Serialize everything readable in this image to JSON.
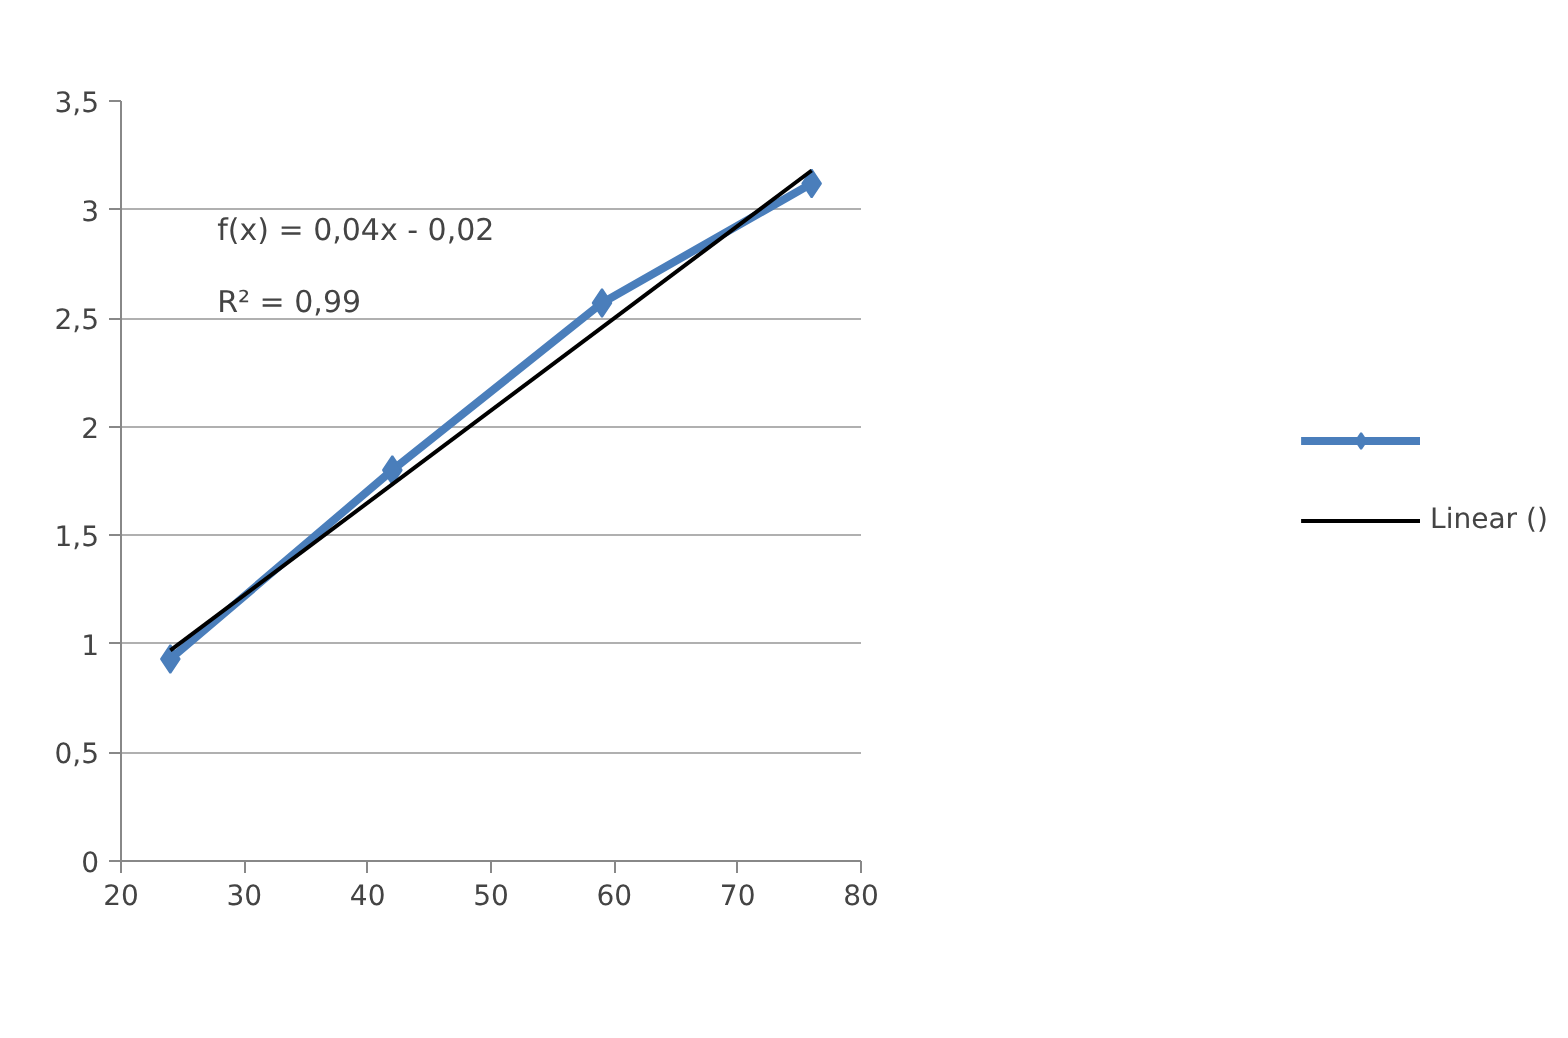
{
  "chart_data": {
    "type": "line",
    "series": [
      {
        "color": "#4a7ebb",
        "x": [
          24,
          42,
          59,
          76
        ],
        "values": [
          0.93,
          1.8,
          2.57,
          3.12
        ],
        "marker": "diamond"
      },
      {
        "name": "Linear ()",
        "type": "line",
        "color": "#000000",
        "x": [
          24,
          76
        ],
        "values": [
          0.97,
          3.18
        ],
        "marker": "none"
      }
    ],
    "xlim": [
      20,
      80
    ],
    "xticks": [
      20,
      30,
      40,
      50,
      60,
      70,
      80
    ],
    "ylim": [
      0,
      3.5
    ],
    "yticks": [
      0,
      {
        "value": 0.5,
        "label": "0,5"
      },
      1,
      {
        "value": 1.5,
        "label": "1,5"
      },
      2,
      {
        "value": 2.5,
        "label": "2,5"
      },
      3,
      {
        "value": 3.5,
        "label": "3,5"
      }
    ],
    "grid": "y",
    "legend": "right",
    "annotations": [
      "f(x) = 0,04x - 0,02",
      "R² = 0,99"
    ]
  }
}
